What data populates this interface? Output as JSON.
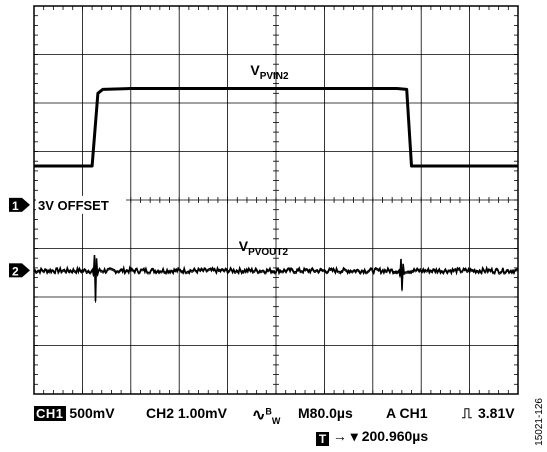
{
  "chart_data": {
    "type": "line",
    "title": "",
    "xlabel": "",
    "ylabel": "",
    "x_divisions": 10,
    "y_divisions": 8,
    "time_per_div_us": 80.0,
    "series": [
      {
        "label": "V",
        "label_sub": "PVIN2",
        "channel": "CH1",
        "volts_per_div": 0.5,
        "offset_label": "3V OFFSET",
        "points_div": [
          [
            0.0,
            4.7
          ],
          [
            1.2,
            4.7
          ],
          [
            1.32,
            6.2
          ],
          [
            1.42,
            6.28
          ],
          [
            2.0,
            6.3
          ],
          [
            7.5,
            6.3
          ],
          [
            7.7,
            6.28
          ],
          [
            7.8,
            4.7
          ],
          [
            10.0,
            4.7
          ]
        ]
      },
      {
        "label": "V",
        "label_sub": "PVOUT2",
        "channel": "CH2",
        "volts_per_div": 0.001,
        "baseline_div": 2.55,
        "noise_amp_div": 0.05,
        "glitches_div": [
          [
            1.27,
            0.45
          ],
          [
            7.6,
            0.35
          ]
        ]
      }
    ],
    "markers": [
      {
        "label": "1",
        "level_div": 3.9
      },
      {
        "label": "2",
        "level_div": 2.55
      }
    ]
  },
  "status": {
    "ch1_tag": "CH1",
    "ch1_scale": "500mV",
    "ch2_scale": "CH2 1.00mV",
    "bw_symbol": "∿",
    "bw_label_b": "B",
    "bw_label_w": "W",
    "timebase": "M80.0µs",
    "trigger": "A  CH1",
    "trigger_edge": "⎍",
    "trigger_level": "3.81V",
    "trigger_tag": "T",
    "trigger_pos": "→ ▾ 200.960µs"
  },
  "figure_id": "15021-126"
}
